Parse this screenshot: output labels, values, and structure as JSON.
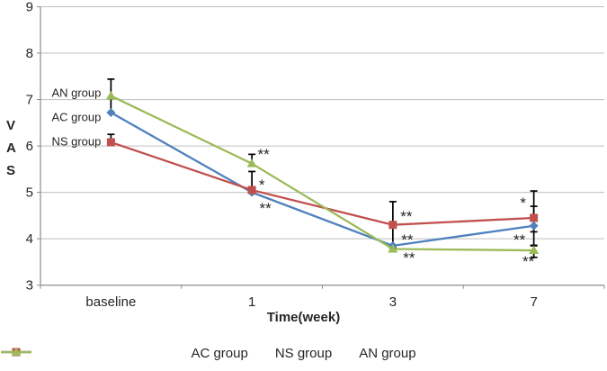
{
  "chart_data": {
    "type": "line",
    "title": "",
    "xlabel": "Time(week)",
    "ylabel": "VAS",
    "ylabel_stack": [
      "V",
      "A",
      "S"
    ],
    "categories": [
      "baseline",
      "1",
      "3",
      "7"
    ],
    "ylim": [
      3,
      9
    ],
    "yticks": [
      3,
      4,
      5,
      6,
      7,
      8,
      9
    ],
    "grid": true,
    "legend_position": "bottom",
    "series": [
      {
        "name": "AC group",
        "marker": "diamond",
        "color": "#4F81BD",
        "values": [
          6.72,
          5.0,
          3.85,
          4.28
        ],
        "err_up": [
          null,
          null,
          null,
          0.42
        ],
        "err_down": [
          null,
          null,
          null,
          0.42
        ]
      },
      {
        "name": "NS group",
        "marker": "square",
        "color": "#C0504D",
        "values": [
          6.08,
          5.05,
          4.3,
          4.45
        ],
        "err_up": [
          0.17,
          0.4,
          0.5,
          0.58
        ],
        "err_down": [
          null,
          null,
          0.5,
          0.3
        ]
      },
      {
        "name": "AN group",
        "marker": "triangle",
        "color": "#9BBB59",
        "values": [
          7.08,
          5.62,
          3.78,
          3.75
        ],
        "err_up": [
          0.36,
          0.2,
          null,
          0.1
        ],
        "err_down": [
          0.36,
          null,
          null,
          0.15
        ]
      }
    ],
    "point_labels": [
      {
        "text": "AN group",
        "cat": 0,
        "value": 7.15,
        "dx": -11,
        "anchor": "end"
      },
      {
        "text": "AC group",
        "cat": 0,
        "value": 6.62,
        "dx": -11,
        "anchor": "end"
      },
      {
        "text": "NS group",
        "cat": 0,
        "value": 6.1,
        "dx": -11,
        "anchor": "end"
      }
    ],
    "significance_marks": [
      {
        "text": "**",
        "cat": 1,
        "value": 5.89,
        "dx": 13
      },
      {
        "text": "*",
        "cat": 1,
        "value": 5.23,
        "dx": 11
      },
      {
        "text": "**",
        "cat": 1,
        "value": 4.72,
        "dx": 15
      },
      {
        "text": "**",
        "cat": 2,
        "value": 4.55,
        "dx": 15
      },
      {
        "text": "**",
        "cat": 2,
        "value": 4.04,
        "dx": 16
      },
      {
        "text": "**",
        "cat": 2,
        "value": 3.65,
        "dx": 18
      },
      {
        "text": "*",
        "cat": 3,
        "value": 4.84,
        "dx": -12
      },
      {
        "text": "**",
        "cat": 3,
        "value": 4.04,
        "dx": -16
      },
      {
        "text": "**",
        "cat": 3,
        "value": 3.58,
        "dx": -6
      }
    ],
    "colors": {
      "grid": "#bfbfbf",
      "axis": "#8c8c8c",
      "text": "#262626",
      "error_bar": "#000000"
    }
  }
}
